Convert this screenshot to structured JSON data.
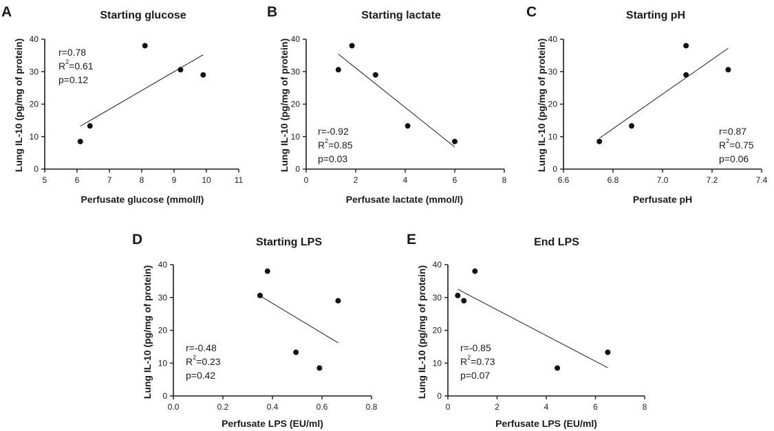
{
  "colors": {
    "axis": "#1a1a1a",
    "point": "#111111",
    "fit_line": "#1a1a1a"
  },
  "panels": [
    {
      "letter": "A",
      "title": "Starting glucose",
      "xlabel": "Perfusate glucose (mmol/l)",
      "ylabel": "Lung IL-10 (pg/mg of protein)",
      "stats": {
        "r": "r=0.78",
        "r2_prefix": "R",
        "r2_sup": "2",
        "r2_value": "=0.61",
        "p": "p=0.12"
      }
    },
    {
      "letter": "B",
      "title": "Starting lactate",
      "xlabel": "Perfusate lactate (mmol/l)",
      "ylabel": "Lung IL-10 (pg/mg of protein)",
      "stats": {
        "r": "r=-0.92",
        "r2_prefix": "R",
        "r2_sup": "2",
        "r2_value": "=0.85",
        "p": "p=0.03"
      }
    },
    {
      "letter": "C",
      "title": "Starting pH",
      "xlabel": "Perfusate pH",
      "ylabel": "Lung IL-10 (pg/mg of protein)",
      "stats": {
        "r": "r=0.87",
        "r2_prefix": "R",
        "r2_sup": "2",
        "r2_value": "=0.75",
        "p": "p=0.06"
      }
    },
    {
      "letter": "D",
      "title": "Starting LPS",
      "xlabel": "Perfusate LPS (EU/ml)",
      "ylabel": "Lung IL-10 (pg/mg of protein)",
      "stats": {
        "r": "r=-0.48",
        "r2_prefix": "R",
        "r2_sup": "2",
        "r2_value": "=0.23",
        "p": "p=0.42"
      }
    },
    {
      "letter": "E",
      "title": "End LPS",
      "xlabel": "Perfusate LPS (EU/ml)",
      "ylabel": "Lung IL-10 (pg/mg of protein)",
      "stats": {
        "r": "r=-0.85",
        "r2_prefix": "R",
        "r2_sup": "2",
        "r2_value": "=0.73",
        "p": "p=0.07"
      }
    }
  ],
  "chart_data": [
    {
      "type": "scatter",
      "title": "Starting glucose",
      "xlabel": "Perfusate glucose (mmol/l)",
      "ylabel": "Lung IL-10 (pg/mg of protein)",
      "xlim": [
        5,
        11
      ],
      "ylim": [
        0,
        40
      ],
      "xticks": [
        "5",
        "6",
        "7",
        "8",
        "9",
        "10",
        "11"
      ],
      "xtick_values": [
        5,
        6,
        7,
        8,
        9,
        10,
        11
      ],
      "yticks": [
        "0",
        "10",
        "20",
        "30",
        "40"
      ],
      "ytick_values": [
        0,
        10,
        20,
        30,
        40
      ],
      "points": [
        {
          "x": 6.1,
          "y": 8.5
        },
        {
          "x": 6.4,
          "y": 13.3
        },
        {
          "x": 8.1,
          "y": 38.0
        },
        {
          "x": 9.2,
          "y": 30.6
        },
        {
          "x": 9.9,
          "y": 29.0
        }
      ],
      "fit_line": [
        {
          "x": 6.1,
          "y": 13.2
        },
        {
          "x": 9.9,
          "y": 35.2
        }
      ],
      "grid": false
    },
    {
      "type": "scatter",
      "title": "Starting lactate",
      "xlabel": "Perfusate lactate (mmol/l)",
      "ylabel": "Lung IL-10 (pg/mg of protein)",
      "xlim": [
        0,
        8
      ],
      "ylim": [
        0,
        40
      ],
      "xticks": [
        "0",
        "2",
        "4",
        "6",
        "8"
      ],
      "xtick_values": [
        0,
        2,
        4,
        6,
        8
      ],
      "yticks": [
        "0",
        "10",
        "20",
        "30",
        "40"
      ],
      "ytick_values": [
        0,
        10,
        20,
        30,
        40
      ],
      "points": [
        {
          "x": 1.3,
          "y": 30.6
        },
        {
          "x": 1.85,
          "y": 38.0
        },
        {
          "x": 2.8,
          "y": 29.0
        },
        {
          "x": 4.1,
          "y": 13.3
        },
        {
          "x": 6.0,
          "y": 8.5
        }
      ],
      "fit_line": [
        {
          "x": 1.3,
          "y": 35.4
        },
        {
          "x": 6.0,
          "y": 6.8
        }
      ],
      "grid": false
    },
    {
      "type": "scatter",
      "title": "Starting pH",
      "xlabel": "Perfusate pH",
      "ylabel": "Lung IL-10 (pg/mg of protein)",
      "xlim": [
        6.6,
        7.4
      ],
      "ylim": [
        0,
        40
      ],
      "xticks": [
        "6.6",
        "6.8",
        "7.0",
        "7.2",
        "7.4"
      ],
      "xtick_values": [
        6.6,
        6.8,
        7.0,
        7.2,
        7.4
      ],
      "yticks": [
        "0",
        "10",
        "20",
        "30",
        "40"
      ],
      "ytick_values": [
        0,
        10,
        20,
        30,
        40
      ],
      "points": [
        {
          "x": 6.745,
          "y": 8.5
        },
        {
          "x": 6.875,
          "y": 13.3
        },
        {
          "x": 7.095,
          "y": 38.0
        },
        {
          "x": 7.095,
          "y": 29.0
        },
        {
          "x": 7.265,
          "y": 30.6
        }
      ],
      "fit_line": [
        {
          "x": 6.745,
          "y": 9.5
        },
        {
          "x": 7.265,
          "y": 37.2
        }
      ],
      "grid": false
    },
    {
      "type": "scatter",
      "title": "Starting LPS",
      "xlabel": "Perfusate LPS (EU/ml)",
      "ylabel": "Lung IL-10 (pg/mg of protein)",
      "xlim": [
        0,
        0.8
      ],
      "ylim": [
        0,
        40
      ],
      "xticks": [
        "0.0",
        "0.2",
        "0.4",
        "0.6",
        "0.8"
      ],
      "xtick_values": [
        0,
        0.2,
        0.4,
        0.6,
        0.8
      ],
      "yticks": [
        "0",
        "10",
        "20",
        "30",
        "40"
      ],
      "ytick_values": [
        0,
        10,
        20,
        30,
        40
      ],
      "points": [
        {
          "x": 0.35,
          "y": 30.6
        },
        {
          "x": 0.38,
          "y": 38.0
        },
        {
          "x": 0.495,
          "y": 13.3
        },
        {
          "x": 0.59,
          "y": 8.5
        },
        {
          "x": 0.665,
          "y": 29.0
        }
      ],
      "fit_line": [
        {
          "x": 0.35,
          "y": 30.5
        },
        {
          "x": 0.665,
          "y": 16.2
        }
      ],
      "grid": false
    },
    {
      "type": "scatter",
      "title": "End LPS",
      "xlabel": "Perfusate LPS (EU/ml)",
      "ylabel": "Lung IL-10 (pg/mg of protein)",
      "xlim": [
        0,
        8
      ],
      "ylim": [
        0,
        40
      ],
      "xticks": [
        "0",
        "2",
        "4",
        "6",
        "8"
      ],
      "xtick_values": [
        0,
        2,
        4,
        6,
        8
      ],
      "yticks": [
        "0",
        "10",
        "20",
        "30",
        "40"
      ],
      "ytick_values": [
        0,
        10,
        20,
        30,
        40
      ],
      "points": [
        {
          "x": 0.4,
          "y": 30.6
        },
        {
          "x": 0.65,
          "y": 29.0
        },
        {
          "x": 1.1,
          "y": 38.0
        },
        {
          "x": 4.45,
          "y": 8.5
        },
        {
          "x": 6.5,
          "y": 13.3
        }
      ],
      "fit_line": [
        {
          "x": 0.4,
          "y": 32.5
        },
        {
          "x": 6.5,
          "y": 8.6
        }
      ],
      "grid": false
    }
  ]
}
